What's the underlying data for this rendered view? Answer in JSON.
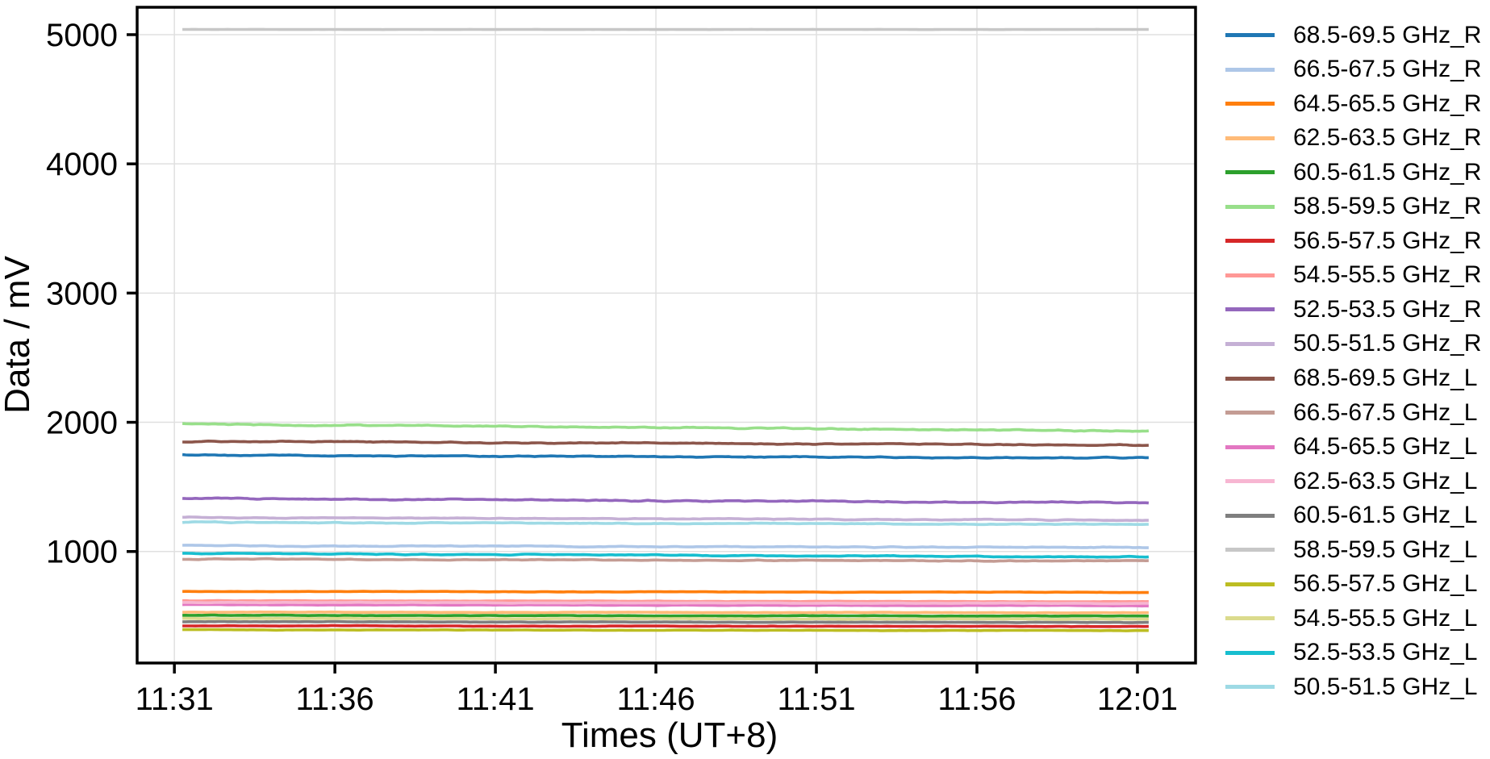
{
  "figure": {
    "background": "#ffffff",
    "x_axis_title": "Times (UT+8)",
    "y_axis_title": "Data / mV"
  },
  "chart_data": {
    "type": "line",
    "title": "",
    "xlabel": "Times (UT+8)",
    "ylabel": "Data / mV",
    "x_tick_labels": [
      "11:31",
      "11:36",
      "11:41",
      "11:46",
      "11:51",
      "11:56",
      "12:01"
    ],
    "x_tick_minutes": [
      0,
      5,
      10,
      15,
      20,
      25,
      30
    ],
    "y_ticks": [
      1000,
      2000,
      3000,
      4000,
      5000
    ],
    "xlim_minutes": [
      -1.16,
      31.81
    ],
    "ylim": [
      137,
      5212
    ],
    "x_data_range_minutes": [
      0.25,
      30.35
    ],
    "grid": true,
    "legend_position": "right-outside",
    "colors": {
      "grid": "#e0e0e0",
      "axis": "#000000",
      "text": "#000000",
      "background": "#ffffff"
    },
    "series": [
      {
        "name": "68.5-69.5 GHz_R",
        "color": "#1f77b4",
        "start": 1745,
        "end": 1723,
        "noise": 5
      },
      {
        "name": "66.5-67.5 GHz_R",
        "color": "#aec7e8",
        "start": 1045,
        "end": 1031,
        "noise": 4
      },
      {
        "name": "64.5-65.5 GHz_R",
        "color": "#ff7f0e",
        "start": 691,
        "end": 684,
        "noise": 2
      },
      {
        "name": "62.5-63.5 GHz_R",
        "color": "#ffbb78",
        "start": 531,
        "end": 526,
        "noise": 2
      },
      {
        "name": "60.5-61.5 GHz_R",
        "color": "#2ca02c",
        "start": 506,
        "end": 500,
        "noise": 2
      },
      {
        "name": "58.5-59.5 GHz_R",
        "color": "#98df8a",
        "start": 1987,
        "end": 1931,
        "noise": 6
      },
      {
        "name": "56.5-57.5 GHz_R",
        "color": "#d62728",
        "start": 425,
        "end": 420,
        "noise": 2
      },
      {
        "name": "54.5-55.5 GHz_R",
        "color": "#ff9896",
        "start": 619,
        "end": 611,
        "noise": 2
      },
      {
        "name": "52.5-53.5 GHz_R",
        "color": "#9467bd",
        "start": 1411,
        "end": 1376,
        "noise": 6
      },
      {
        "name": "50.5-51.5 GHz_R",
        "color": "#c5b0d5",
        "start": 1264,
        "end": 1242,
        "noise": 4
      },
      {
        "name": "68.5-69.5 GHz_L",
        "color": "#8c564b",
        "start": 1853,
        "end": 1824,
        "noise": 5
      },
      {
        "name": "66.5-67.5 GHz_L",
        "color": "#c49c94",
        "start": 941,
        "end": 926,
        "noise": 4
      },
      {
        "name": "64.5-65.5 GHz_L",
        "color": "#e377c2",
        "start": 589,
        "end": 580,
        "noise": 2.5
      },
      {
        "name": "62.5-63.5 GHz_L",
        "color": "#f7b6d2",
        "start": 606,
        "end": 598,
        "noise": 2.5
      },
      {
        "name": "60.5-61.5 GHz_L",
        "color": "#7f7f7f",
        "start": 457,
        "end": 451,
        "noise": 2
      },
      {
        "name": "58.5-59.5 GHz_L",
        "color": "#c7c7c7",
        "start": 5040,
        "end": 5040,
        "noise": 0.8
      },
      {
        "name": "56.5-57.5 GHz_L",
        "color": "#bcbd22",
        "start": 394,
        "end": 388,
        "noise": 2
      },
      {
        "name": "54.5-55.5 GHz_L",
        "color": "#dbdb8d",
        "start": 482,
        "end": 476,
        "noise": 2
      },
      {
        "name": "52.5-53.5 GHz_L",
        "color": "#17becf",
        "start": 986,
        "end": 957,
        "noise": 4
      },
      {
        "name": "50.5-51.5 GHz_L",
        "color": "#9edae5",
        "start": 1226,
        "end": 1209,
        "noise": 4
      }
    ]
  }
}
